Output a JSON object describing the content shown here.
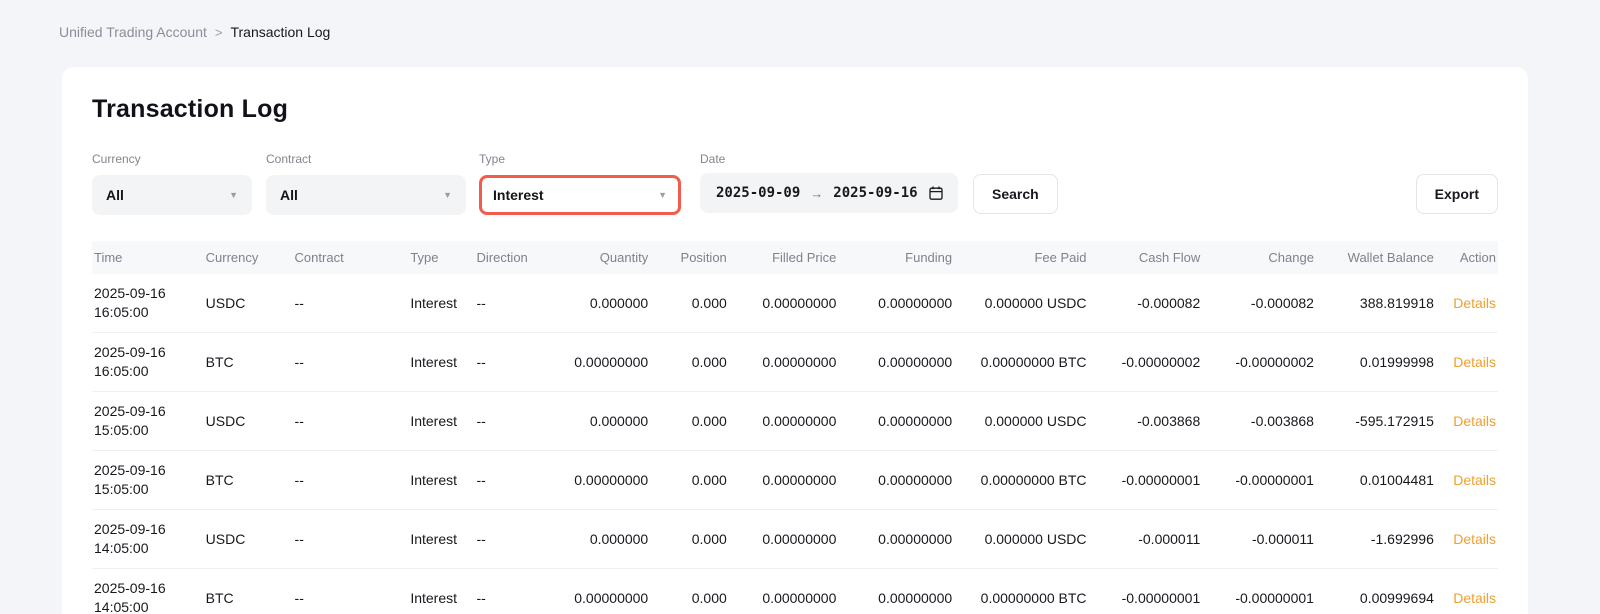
{
  "breadcrumb": {
    "parent": "Unified Trading Account",
    "separator": ">",
    "current": "Transaction Log"
  },
  "page": {
    "title": "Transaction Log"
  },
  "filters": {
    "currency": {
      "label": "Currency",
      "value": "All"
    },
    "contract": {
      "label": "Contract",
      "value": "All"
    },
    "type": {
      "label": "Type",
      "value": "Interest"
    },
    "date": {
      "label": "Date",
      "from": "2025-09-09",
      "arrow": "→",
      "to": "2025-09-16"
    },
    "search_label": "Search",
    "export_label": "Export"
  },
  "table": {
    "columns": {
      "time": "Time",
      "currency": "Currency",
      "contract": "Contract",
      "type": "Type",
      "direction": "Direction",
      "quantity": "Quantity",
      "position": "Position",
      "filled_price": "Filled Price",
      "funding": "Funding",
      "fee_paid": "Fee Paid",
      "cash_flow": "Cash Flow",
      "change": "Change",
      "wallet_balance": "Wallet Balance",
      "action": "Action"
    },
    "rows": [
      {
        "time_date": "2025-09-16",
        "time_clock": "16:05:00",
        "currency": "USDC",
        "contract": "--",
        "type": "Interest",
        "direction": "--",
        "quantity": "0.000000",
        "position": "0.000",
        "filled_price": "0.00000000",
        "funding": "0.00000000",
        "fee_paid": "0.000000 USDC",
        "cash_flow": "-0.000082",
        "change": "-0.000082",
        "wallet_balance": "388.819918",
        "action": "Details"
      },
      {
        "time_date": "2025-09-16",
        "time_clock": "16:05:00",
        "currency": "BTC",
        "contract": "--",
        "type": "Interest",
        "direction": "--",
        "quantity": "0.00000000",
        "position": "0.000",
        "filled_price": "0.00000000",
        "funding": "0.00000000",
        "fee_paid": "0.00000000 BTC",
        "cash_flow": "-0.00000002",
        "change": "-0.00000002",
        "wallet_balance": "0.01999998",
        "action": "Details"
      },
      {
        "time_date": "2025-09-16",
        "time_clock": "15:05:00",
        "currency": "USDC",
        "contract": "--",
        "type": "Interest",
        "direction": "--",
        "quantity": "0.000000",
        "position": "0.000",
        "filled_price": "0.00000000",
        "funding": "0.00000000",
        "fee_paid": "0.000000 USDC",
        "cash_flow": "-0.003868",
        "change": "-0.003868",
        "wallet_balance": "-595.172915",
        "action": "Details"
      },
      {
        "time_date": "2025-09-16",
        "time_clock": "15:05:00",
        "currency": "BTC",
        "contract": "--",
        "type": "Interest",
        "direction": "--",
        "quantity": "0.00000000",
        "position": "0.000",
        "filled_price": "0.00000000",
        "funding": "0.00000000",
        "fee_paid": "0.00000000 BTC",
        "cash_flow": "-0.00000001",
        "change": "-0.00000001",
        "wallet_balance": "0.01004481",
        "action": "Details"
      },
      {
        "time_date": "2025-09-16",
        "time_clock": "14:05:00",
        "currency": "USDC",
        "contract": "--",
        "type": "Interest",
        "direction": "--",
        "quantity": "0.000000",
        "position": "0.000",
        "filled_price": "0.00000000",
        "funding": "0.00000000",
        "fee_paid": "0.000000 USDC",
        "cash_flow": "-0.000011",
        "change": "-0.000011",
        "wallet_balance": "-1.692996",
        "action": "Details"
      },
      {
        "time_date": "2025-09-16",
        "time_clock": "14:05:00",
        "currency": "BTC",
        "contract": "--",
        "type": "Interest",
        "direction": "--",
        "quantity": "0.00000000",
        "position": "0.000",
        "filled_price": "0.00000000",
        "funding": "0.00000000",
        "fee_paid": "0.00000000 BTC",
        "cash_flow": "-0.00000001",
        "change": "-0.00000001",
        "wallet_balance": "0.00999694",
        "action": "Details"
      }
    ]
  },
  "colors": {
    "page_background": "#f4f5f9",
    "card_background": "#ffffff",
    "type_highlight_border": "#f25c4d",
    "negative_red": "#ef4545",
    "details_orange": "#efa02f",
    "header_band": "#f7f8fa"
  }
}
